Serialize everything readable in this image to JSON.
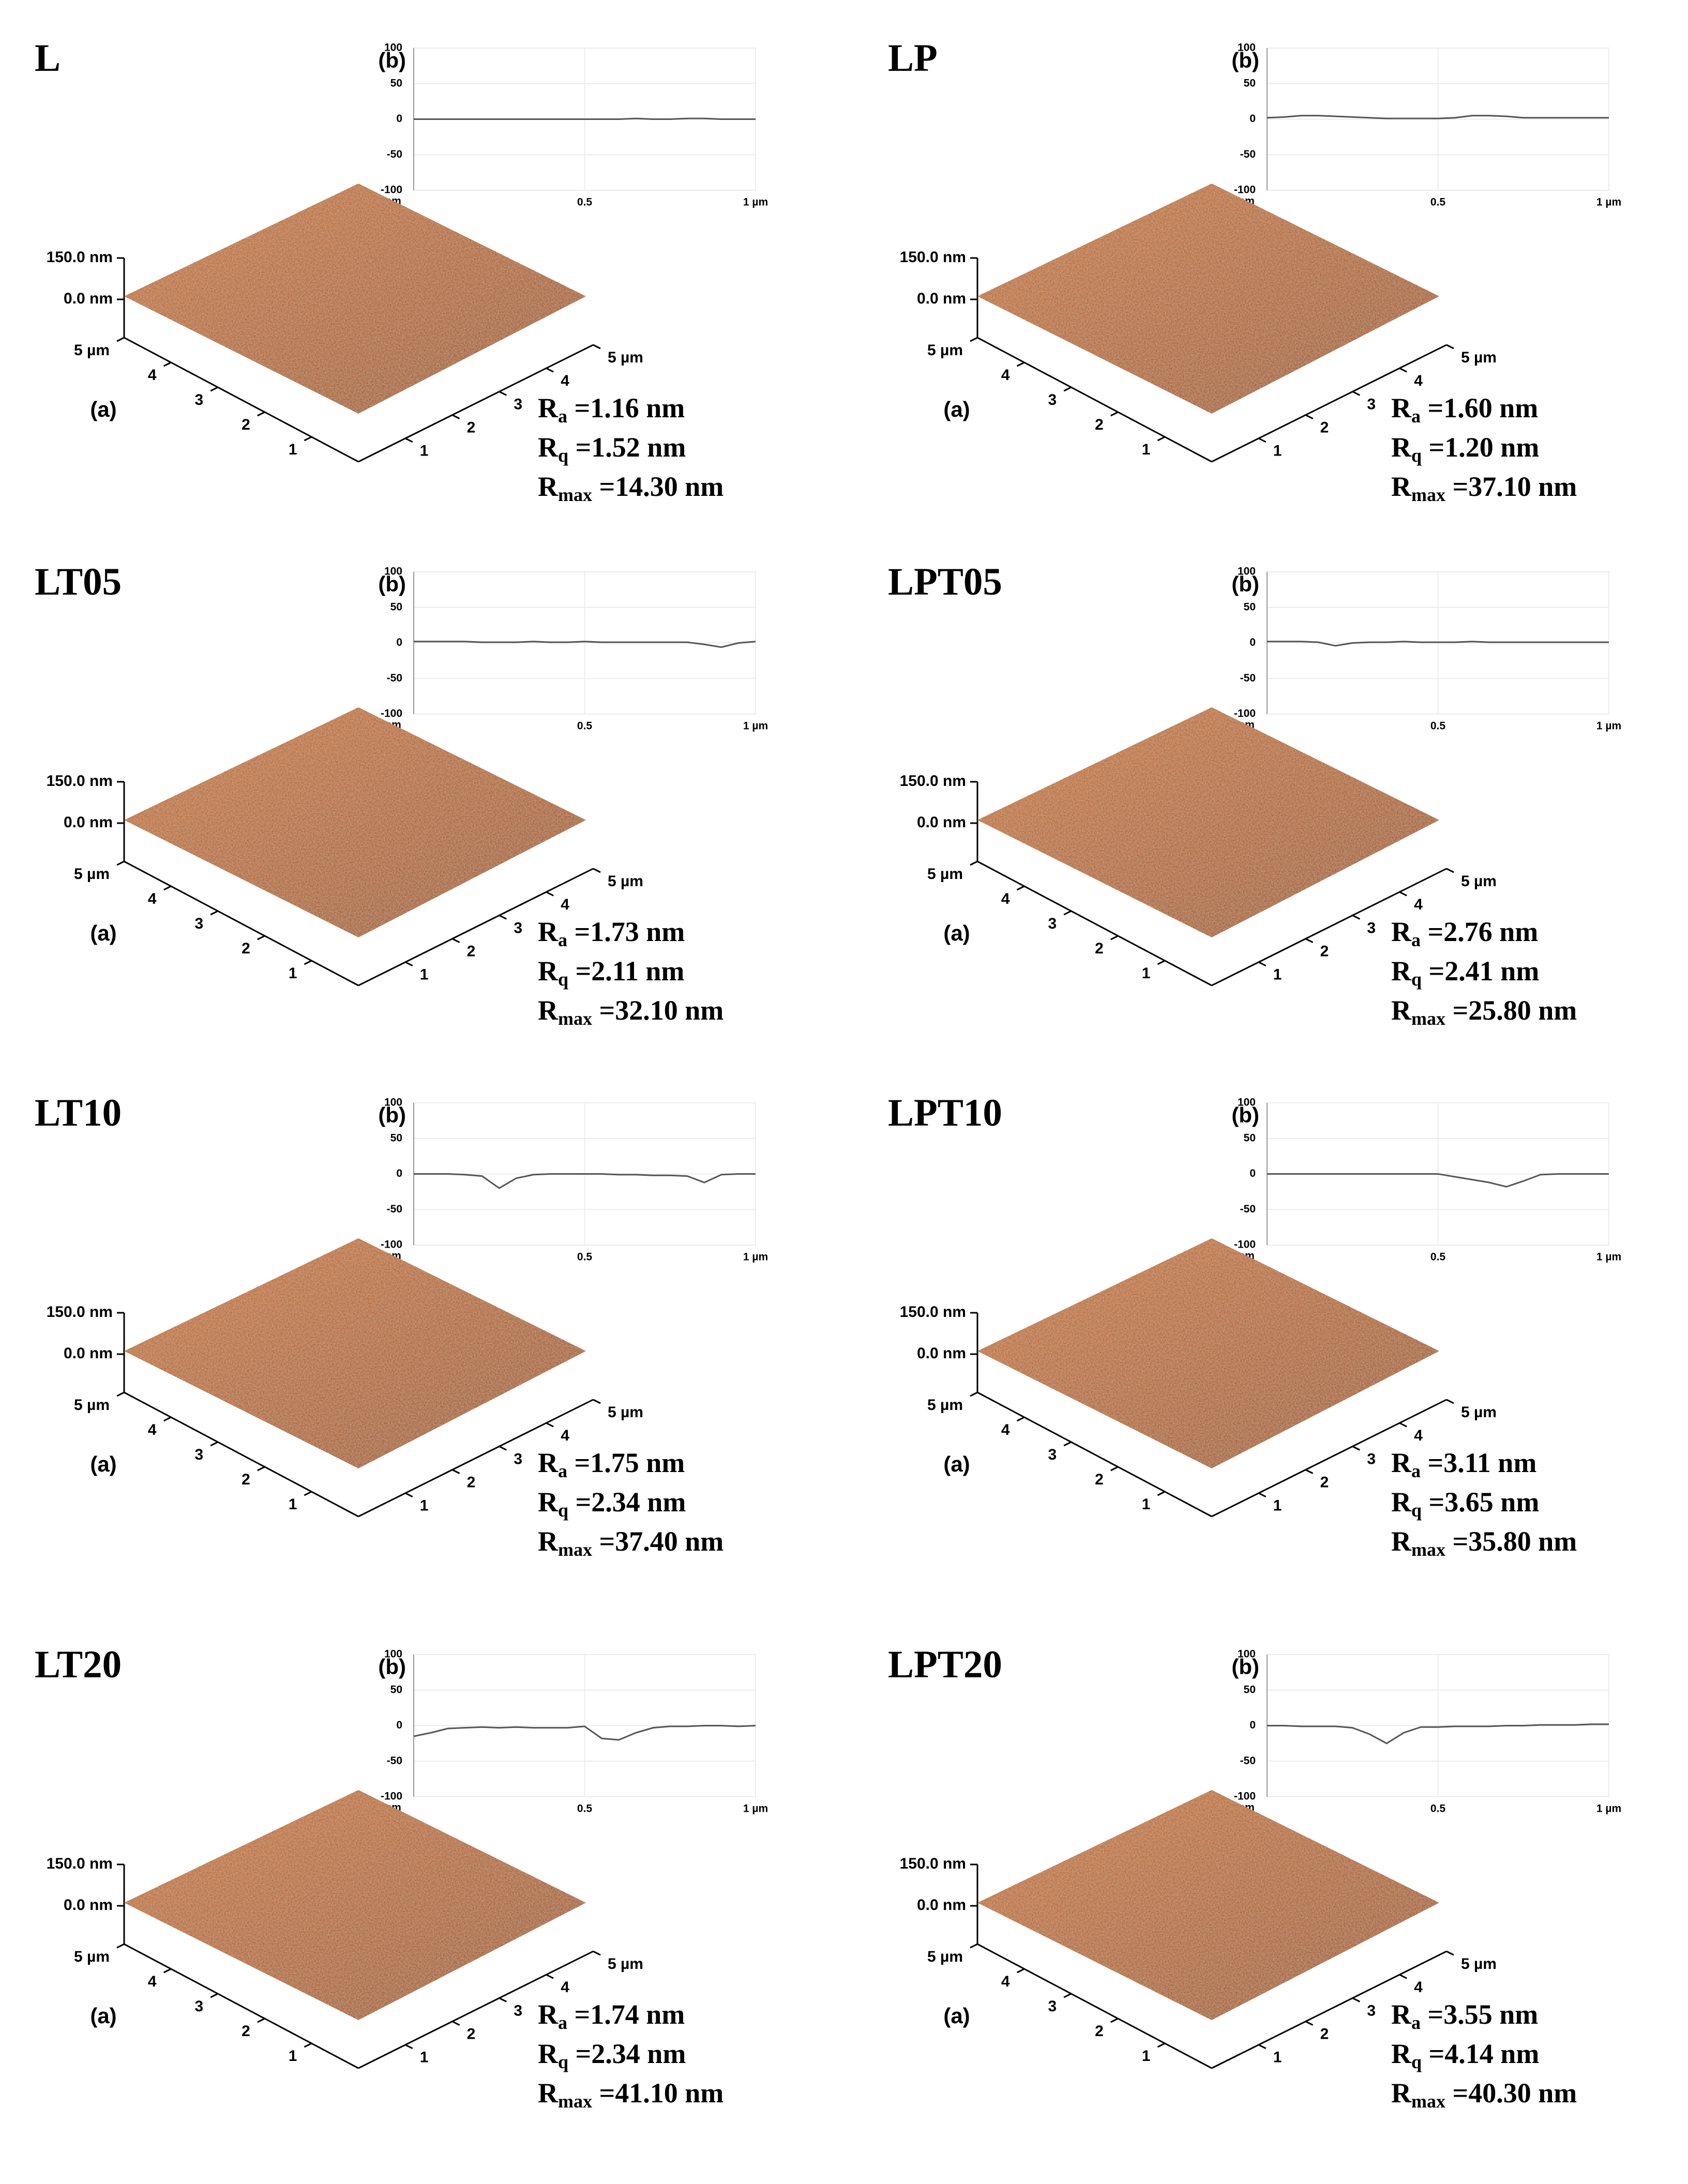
{
  "chart_data": [
    {
      "type": "line",
      "title": "L",
      "panel_label": "(b)",
      "y_unit": "nm",
      "color": "#555555",
      "x": [
        0,
        0.05,
        0.1,
        0.15,
        0.2,
        0.25,
        0.3,
        0.35,
        0.4,
        0.45,
        0.5,
        0.55,
        0.6,
        0.65,
        0.7,
        0.75,
        0.8,
        0.85,
        0.9,
        0.95,
        1
      ],
      "values": [
        0,
        0,
        0,
        0,
        0,
        0,
        0,
        0,
        0,
        0,
        0,
        0,
        0,
        1,
        0,
        0,
        1,
        1,
        0,
        0,
        0
      ],
      "xlim": [
        0,
        1
      ],
      "ylim": [
        -100,
        100
      ],
      "yticks": [
        100,
        50,
        0,
        -50,
        -100
      ],
      "xticks": [
        0.5,
        {
          "value": 1,
          "label": "1 µm"
        }
      ],
      "grid": true,
      "surface": {
        "label": "(a)",
        "zticks": [
          {
            "value": 150,
            "label": "150.0 nm"
          },
          {
            "value": 0,
            "label": "0.0 nm"
          }
        ],
        "left_ticks": [
          {
            "value": 5,
            "label": "5 µm"
          },
          4,
          3,
          2,
          1
        ],
        "right_ticks": [
          1,
          2,
          3,
          4,
          {
            "value": 5,
            "label": "5 µm"
          }
        ]
      },
      "roughness": [
        {
          "symbol": "R",
          "sub": "a",
          "text": " =1.16 nm"
        },
        {
          "symbol": "R",
          "sub": "q",
          "text": " =1.52 nm"
        },
        {
          "symbol": "R",
          "sub": "max",
          "text": " =14.30 nm"
        }
      ]
    },
    {
      "type": "line",
      "title": "LP",
      "panel_label": "(b)",
      "y_unit": "nm",
      "color": "#555555",
      "x": [
        0,
        0.05,
        0.1,
        0.15,
        0.2,
        0.25,
        0.3,
        0.35,
        0.4,
        0.45,
        0.5,
        0.55,
        0.6,
        0.65,
        0.7,
        0.75,
        0.8,
        0.85,
        0.9,
        0.95,
        1
      ],
      "values": [
        2,
        3,
        5,
        5,
        4,
        3,
        2,
        1,
        1,
        1,
        1,
        2,
        5,
        5,
        4,
        2,
        2,
        2,
        2,
        2,
        2
      ],
      "xlim": [
        0,
        1
      ],
      "ylim": [
        -100,
        100
      ],
      "yticks": [
        100,
        50,
        0,
        -50,
        -100
      ],
      "xticks": [
        0.5,
        {
          "value": 1,
          "label": "1 µm"
        }
      ],
      "grid": true,
      "surface": {
        "label": "(a)",
        "zticks": [
          {
            "value": 150,
            "label": "150.0 nm"
          },
          {
            "value": 0,
            "label": "0.0 nm"
          }
        ],
        "left_ticks": [
          {
            "value": 5,
            "label": "5 µm"
          },
          4,
          3,
          2,
          1
        ],
        "right_ticks": [
          1,
          2,
          3,
          4,
          {
            "value": 5,
            "label": "5 µm"
          }
        ]
      },
      "roughness": [
        {
          "symbol": "R",
          "sub": "a",
          "text": " =1.60 nm"
        },
        {
          "symbol": "R",
          "sub": "q",
          "text": " =1.20 nm"
        },
        {
          "symbol": "R",
          "sub": "max",
          "text": " =37.10 nm"
        }
      ]
    },
    {
      "type": "line",
      "title": "LT05",
      "panel_label": "(b)",
      "y_unit": "nm",
      "color": "#555555",
      "x": [
        0,
        0.05,
        0.1,
        0.15,
        0.2,
        0.25,
        0.3,
        0.35,
        0.4,
        0.45,
        0.5,
        0.55,
        0.6,
        0.65,
        0.7,
        0.75,
        0.8,
        0.85,
        0.9,
        0.95,
        1
      ],
      "values": [
        2,
        2,
        2,
        2,
        1,
        1,
        1,
        2,
        1,
        1,
        2,
        1,
        1,
        1,
        1,
        1,
        1,
        -2,
        -6,
        0,
        2
      ],
      "xlim": [
        0,
        1
      ],
      "ylim": [
        -100,
        100
      ],
      "yticks": [
        100,
        50,
        0,
        -50,
        -100
      ],
      "xticks": [
        0.5,
        {
          "value": 1,
          "label": "1 µm"
        }
      ],
      "grid": true,
      "surface": {
        "label": "(a)",
        "zticks": [
          {
            "value": 150,
            "label": "150.0 nm"
          },
          {
            "value": 0,
            "label": "0.0 nm"
          }
        ],
        "left_ticks": [
          {
            "value": 5,
            "label": "5 µm"
          },
          4,
          3,
          2,
          1
        ],
        "right_ticks": [
          1,
          2,
          3,
          4,
          {
            "value": 5,
            "label": "5 µm"
          }
        ]
      },
      "roughness": [
        {
          "symbol": "R",
          "sub": "a",
          "text": " =1.73 nm"
        },
        {
          "symbol": "R",
          "sub": "q",
          "text": " =2.11 nm"
        },
        {
          "symbol": "R",
          "sub": "max",
          "text": " =32.10 nm"
        }
      ]
    },
    {
      "type": "line",
      "title": "LPT05",
      "panel_label": "(b)",
      "y_unit": "nm",
      "color": "#555555",
      "x": [
        0,
        0.05,
        0.1,
        0.15,
        0.2,
        0.25,
        0.3,
        0.35,
        0.4,
        0.45,
        0.5,
        0.55,
        0.6,
        0.65,
        0.7,
        0.75,
        0.8,
        0.85,
        0.9,
        0.95,
        1
      ],
      "values": [
        2,
        2,
        2,
        1,
        -4,
        0,
        1,
        1,
        2,
        1,
        1,
        1,
        2,
        1,
        1,
        1,
        1,
        1,
        1,
        1,
        1
      ],
      "xlim": [
        0,
        1
      ],
      "ylim": [
        -100,
        100
      ],
      "yticks": [
        100,
        50,
        0,
        -50,
        -100
      ],
      "xticks": [
        0.5,
        {
          "value": 1,
          "label": "1 µm"
        }
      ],
      "grid": true,
      "surface": {
        "label": "(a)",
        "zticks": [
          {
            "value": 150,
            "label": "150.0 nm"
          },
          {
            "value": 0,
            "label": "0.0 nm"
          }
        ],
        "left_ticks": [
          {
            "value": 5,
            "label": "5 µm"
          },
          4,
          3,
          2,
          1
        ],
        "right_ticks": [
          1,
          2,
          3,
          4,
          {
            "value": 5,
            "label": "5 µm"
          }
        ]
      },
      "roughness": [
        {
          "symbol": "R",
          "sub": "a",
          "text": " =2.76 nm"
        },
        {
          "symbol": "R",
          "sub": "q",
          "text": " =2.41 nm"
        },
        {
          "symbol": "R",
          "sub": "max",
          "text": " =25.80 nm"
        }
      ]
    },
    {
      "type": "line",
      "title": "LT10",
      "panel_label": "(b)",
      "y_unit": "nm",
      "color": "#555555",
      "x": [
        0,
        0.05,
        0.1,
        0.15,
        0.2,
        0.25,
        0.3,
        0.35,
        0.4,
        0.45,
        0.5,
        0.55,
        0.6,
        0.65,
        0.7,
        0.75,
        0.8,
        0.85,
        0.9,
        0.95,
        1
      ],
      "values": [
        0,
        0,
        0,
        -1,
        -3,
        -20,
        -6,
        -1,
        0,
        0,
        0,
        0,
        -1,
        -1,
        -2,
        -2,
        -3,
        -12,
        -1,
        0,
        0
      ],
      "xlim": [
        0,
        1
      ],
      "ylim": [
        -100,
        100
      ],
      "yticks": [
        100,
        50,
        0,
        -50,
        -100
      ],
      "xticks": [
        0.5,
        {
          "value": 1,
          "label": "1 µm"
        }
      ],
      "grid": true,
      "surface": {
        "label": "(a)",
        "zticks": [
          {
            "value": 150,
            "label": "150.0 nm"
          },
          {
            "value": 0,
            "label": "0.0 nm"
          }
        ],
        "left_ticks": [
          {
            "value": 5,
            "label": "5 µm"
          },
          4,
          3,
          2,
          1
        ],
        "right_ticks": [
          1,
          2,
          3,
          4,
          {
            "value": 5,
            "label": "5 µm"
          }
        ]
      },
      "roughness": [
        {
          "symbol": "R",
          "sub": "a",
          "text": " =1.75 nm"
        },
        {
          "symbol": "R",
          "sub": "q",
          "text": " =2.34 nm"
        },
        {
          "symbol": "R",
          "sub": "max",
          "text": " =37.40 nm"
        }
      ]
    },
    {
      "type": "line",
      "title": "LPT10",
      "panel_label": "(b)",
      "y_unit": "nm",
      "color": "#555555",
      "x": [
        0,
        0.05,
        0.1,
        0.15,
        0.2,
        0.25,
        0.3,
        0.35,
        0.4,
        0.45,
        0.5,
        0.55,
        0.6,
        0.65,
        0.7,
        0.75,
        0.8,
        0.85,
        0.9,
        0.95,
        1
      ],
      "values": [
        0,
        0,
        0,
        0,
        0,
        0,
        0,
        0,
        0,
        0,
        0,
        -4,
        -8,
        -12,
        -18,
        -10,
        -1,
        0,
        0,
        0,
        0
      ],
      "xlim": [
        0,
        1
      ],
      "ylim": [
        -100,
        100
      ],
      "yticks": [
        100,
        50,
        0,
        -50,
        -100
      ],
      "xticks": [
        0.5,
        {
          "value": 1,
          "label": "1 µm"
        }
      ],
      "grid": true,
      "surface": {
        "label": "(a)",
        "zticks": [
          {
            "value": 150,
            "label": "150.0 nm"
          },
          {
            "value": 0,
            "label": "0.0 nm"
          }
        ],
        "left_ticks": [
          {
            "value": 5,
            "label": "5 µm"
          },
          4,
          3,
          2,
          1
        ],
        "right_ticks": [
          1,
          2,
          3,
          4,
          {
            "value": 5,
            "label": "5 µm"
          }
        ]
      },
      "roughness": [
        {
          "symbol": "R",
          "sub": "a",
          "text": " =3.11 nm"
        },
        {
          "symbol": "R",
          "sub": "q",
          "text": " =3.65 nm"
        },
        {
          "symbol": "R",
          "sub": "max",
          "text": " =35.80 nm"
        }
      ]
    },
    {
      "type": "line",
      "title": "LT20",
      "panel_label": "(b)",
      "y_unit": "nm",
      "color": "#555555",
      "x": [
        0,
        0.05,
        0.1,
        0.15,
        0.2,
        0.25,
        0.3,
        0.35,
        0.4,
        0.45,
        0.5,
        0.55,
        0.6,
        0.65,
        0.7,
        0.75,
        0.8,
        0.85,
        0.9,
        0.95,
        1
      ],
      "values": [
        -15,
        -10,
        -4,
        -3,
        -2,
        -3,
        -2,
        -3,
        -3,
        -3,
        -1,
        -18,
        -20,
        -10,
        -3,
        -1,
        -1,
        0,
        0,
        -1,
        0
      ],
      "xlim": [
        0,
        1
      ],
      "ylim": [
        -100,
        100
      ],
      "yticks": [
        100,
        50,
        0,
        -50,
        -100
      ],
      "xticks": [
        0.5,
        {
          "value": 1,
          "label": "1 µm"
        }
      ],
      "grid": true,
      "surface": {
        "label": "(a)",
        "zticks": [
          {
            "value": 150,
            "label": "150.0 nm"
          },
          {
            "value": 0,
            "label": "0.0 nm"
          }
        ],
        "left_ticks": [
          {
            "value": 5,
            "label": "5 µm"
          },
          4,
          3,
          2,
          1
        ],
        "right_ticks": [
          1,
          2,
          3,
          4,
          {
            "value": 5,
            "label": "5 µm"
          }
        ]
      },
      "roughness": [
        {
          "symbol": "R",
          "sub": "a",
          "text": " =1.74 nm"
        },
        {
          "symbol": "R",
          "sub": "q",
          "text": " =2.34 nm"
        },
        {
          "symbol": "R",
          "sub": "max",
          "text": " =41.10 nm"
        }
      ]
    },
    {
      "type": "line",
      "title": "LPT20",
      "panel_label": "(b)",
      "y_unit": "nm",
      "color": "#555555",
      "x": [
        0,
        0.05,
        0.1,
        0.15,
        0.2,
        0.25,
        0.3,
        0.35,
        0.4,
        0.45,
        0.5,
        0.55,
        0.6,
        0.65,
        0.7,
        0.75,
        0.8,
        0.85,
        0.9,
        0.95,
        1
      ],
      "values": [
        0,
        0,
        -1,
        -1,
        -1,
        -3,
        -12,
        -25,
        -10,
        -2,
        -2,
        -1,
        -1,
        -1,
        0,
        0,
        1,
        1,
        1,
        2,
        2
      ],
      "xlim": [
        0,
        1
      ],
      "ylim": [
        -100,
        100
      ],
      "yticks": [
        100,
        50,
        0,
        -50,
        -100
      ],
      "xticks": [
        0.5,
        {
          "value": 1,
          "label": "1 µm"
        }
      ],
      "grid": true,
      "surface": {
        "label": "(a)",
        "zticks": [
          {
            "value": 150,
            "label": "150.0 nm"
          },
          {
            "value": 0,
            "label": "0.0 nm"
          }
        ],
        "left_ticks": [
          {
            "value": 5,
            "label": "5 µm"
          },
          4,
          3,
          2,
          1
        ],
        "right_ticks": [
          1,
          2,
          3,
          4,
          {
            "value": 5,
            "label": "5 µm"
          }
        ]
      },
      "roughness": [
        {
          "symbol": "R",
          "sub": "a",
          "text": " =3.55 nm"
        },
        {
          "symbol": "R",
          "sub": "q",
          "text": " =4.14 nm"
        },
        {
          "symbol": "R",
          "sub": "max",
          "text": " =40.30 nm"
        }
      ]
    }
  ]
}
